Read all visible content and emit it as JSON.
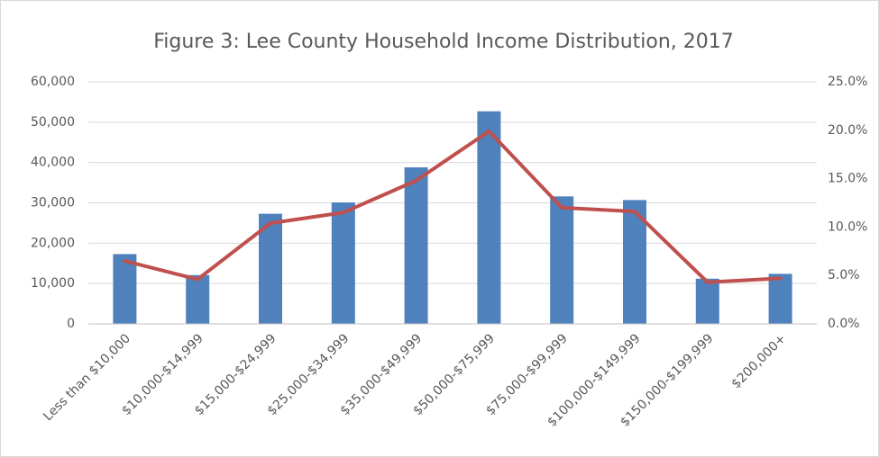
{
  "chart_data": {
    "type": "bar",
    "title": "Figure 3: Lee County Household Income Distribution, 2017",
    "categories": [
      "Less than $10,000",
      "$10,000-$14,999",
      "$15,000-$24,999",
      "$25,000-$34,999",
      "$35,000-$49,999",
      "$50,000-$75,999",
      "$75,000-$99,999",
      "$100,000-$149,999",
      "$150,000-$199,999",
      "$200,000+"
    ],
    "series": [
      {
        "type": "bar",
        "color": "#4f81bd",
        "values": [
          17300,
          12100,
          27300,
          30100,
          38800,
          52700,
          31600,
          30700,
          11200,
          12400
        ]
      },
      {
        "type": "line",
        "axis": "y2",
        "color": "#c0504d",
        "values": [
          6.5,
          4.6,
          10.4,
          11.5,
          14.8,
          19.9,
          12.0,
          11.6,
          4.3,
          4.7
        ]
      }
    ],
    "ylim": [
      0,
      60000
    ],
    "yticks": [
      0,
      {
        "value": 10000,
        "label": "10,000"
      },
      {
        "value": 20000,
        "label": "20,000"
      },
      {
        "value": 30000,
        "label": "30,000"
      },
      {
        "value": 40000,
        "label": "40,000"
      },
      {
        "value": 50000,
        "label": "50,000"
      },
      {
        "value": 60000,
        "label": "60,000"
      }
    ],
    "y2lim": [
      0,
      25
    ],
    "y2ticks": [
      {
        "value": 0,
        "label": "0.0%"
      },
      {
        "value": 5,
        "label": "5.0%"
      },
      {
        "value": 10,
        "label": "10.0%"
      },
      {
        "value": 15,
        "label": "15.0%"
      },
      {
        "value": 20,
        "label": "20.0%"
      },
      {
        "value": 25,
        "label": "25.0%"
      }
    ],
    "grid": true
  }
}
